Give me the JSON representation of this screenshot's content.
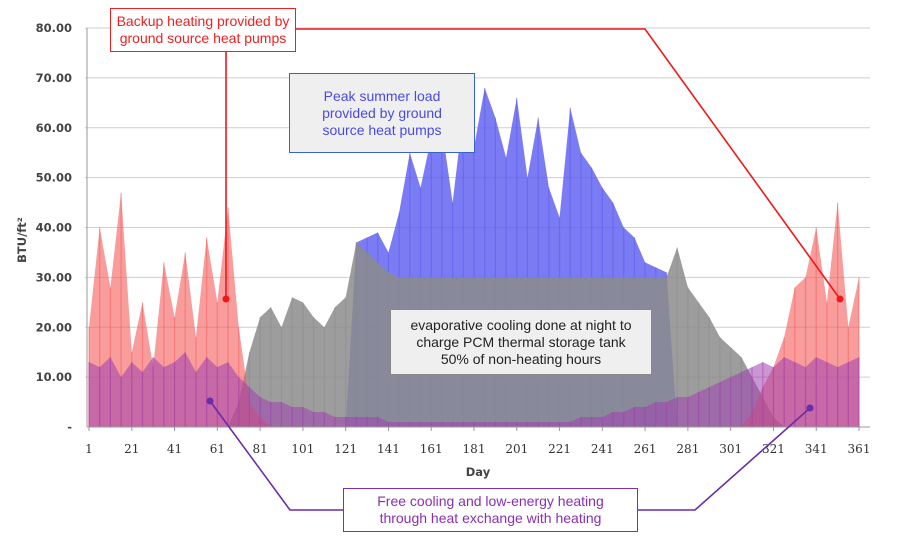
{
  "chart_data": {
    "type": "area",
    "xlabel": "Day",
    "ylabel": "BTU/ft²",
    "ylim": [
      0,
      80
    ],
    "xlim": [
      1,
      365
    ],
    "grid": true,
    "y_ticks": [
      "-",
      "10.00",
      "20.00",
      "30.00",
      "40.00",
      "50.00",
      "60.00",
      "70.00",
      "80.00"
    ],
    "x_ticks": [
      1,
      21,
      41,
      61,
      81,
      101,
      121,
      141,
      161,
      181,
      201,
      221,
      241,
      261,
      281,
      301,
      321,
      341,
      361
    ],
    "x": [
      1,
      6,
      11,
      16,
      21,
      26,
      31,
      36,
      41,
      46,
      51,
      56,
      61,
      66,
      71,
      76,
      81,
      86,
      91,
      96,
      101,
      106,
      111,
      116,
      121,
      126,
      131,
      136,
      141,
      146,
      151,
      156,
      161,
      166,
      171,
      176,
      181,
      186,
      191,
      196,
      201,
      206,
      211,
      216,
      221,
      226,
      231,
      236,
      241,
      246,
      251,
      256,
      261,
      266,
      271,
      276,
      281,
      286,
      291,
      296,
      301,
      306,
      311,
      316,
      321,
      326,
      331,
      336,
      341,
      346,
      351,
      356,
      361
    ],
    "series": [
      {
        "name": "Peak summer load (ground source heat pumps)",
        "color": "#5a5af0",
        "values": [
          0,
          0,
          0,
          0,
          0,
          0,
          0,
          0,
          0,
          0,
          0,
          0,
          0,
          0,
          0,
          0,
          0,
          0,
          0,
          0,
          0,
          0,
          0,
          0,
          0,
          37,
          38,
          39,
          35,
          43,
          55,
          48,
          58,
          60,
          45,
          63,
          56,
          68,
          62,
          54,
          66,
          50,
          62,
          48,
          42,
          64,
          55,
          52,
          48,
          45,
          40,
          38,
          33,
          32,
          31,
          0,
          0,
          0,
          0,
          0,
          0,
          0,
          0,
          0,
          0,
          0,
          0,
          0,
          0,
          0,
          0,
          0,
          0
        ]
      },
      {
        "name": "Evaporative cooling (PCM storage)",
        "color": "#8c8c8c",
        "values": [
          0,
          0,
          0,
          0,
          0,
          0,
          0,
          0,
          0,
          0,
          0,
          0,
          0,
          0,
          5,
          15,
          22,
          24,
          20,
          26,
          25,
          22,
          20,
          24,
          26,
          37,
          35,
          33,
          31,
          30,
          30,
          30,
          30,
          30,
          30,
          30,
          30,
          30,
          30,
          30,
          30,
          30,
          30,
          30,
          30,
          30,
          30,
          30,
          30,
          30,
          30,
          30,
          30,
          30,
          30,
          36,
          28,
          25,
          22,
          18,
          16,
          14,
          10,
          6,
          2,
          0,
          0,
          0,
          0,
          0,
          0,
          0,
          0
        ]
      },
      {
        "name": "Backup heating (ground source heat pumps)",
        "color": "#f55a5a",
        "values": [
          20,
          40,
          28,
          47,
          15,
          25,
          12,
          33,
          22,
          35,
          18,
          38,
          25,
          44,
          20,
          5,
          2,
          0,
          0,
          0,
          0,
          0,
          0,
          0,
          0,
          0,
          0,
          0,
          0,
          0,
          0,
          0,
          0,
          0,
          0,
          0,
          0,
          0,
          0,
          0,
          0,
          0,
          0,
          0,
          0,
          0,
          0,
          0,
          0,
          0,
          0,
          0,
          0,
          0,
          0,
          0,
          0,
          0,
          0,
          0,
          0,
          0,
          3,
          8,
          12,
          18,
          28,
          30,
          40,
          25,
          45,
          20,
          30
        ]
      },
      {
        "name": "Free cooling and low-energy heating",
        "color": "#a040b0",
        "values": [
          13,
          12,
          14,
          10,
          13,
          11,
          14,
          12,
          13,
          15,
          11,
          14,
          12,
          13,
          10,
          8,
          6,
          5,
          5,
          4,
          4,
          3,
          3,
          2,
          2,
          2,
          2,
          2,
          1,
          1,
          1,
          1,
          1,
          1,
          1,
          1,
          1,
          1,
          1,
          1,
          1,
          1,
          1,
          1,
          1,
          1,
          2,
          2,
          2,
          3,
          3,
          4,
          4,
          5,
          5,
          6,
          6,
          7,
          8,
          9,
          10,
          11,
          12,
          13,
          12,
          14,
          13,
          12,
          14,
          13,
          12,
          13,
          14
        ]
      }
    ],
    "annotations": {
      "red": "Backup heating provided by\nground source heat pumps",
      "blue": "Peak summer load\nprovided by ground\nsource heat pumps",
      "gray": "evaporative cooling done at night to\ncharge PCM thermal storage tank\n50% of non-heating hours",
      "purple": "Free cooling and low-energy heating\nthrough heat exchange with heating"
    }
  }
}
